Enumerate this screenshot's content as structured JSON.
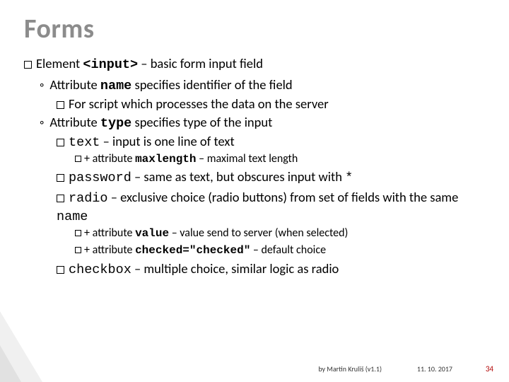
{
  "colors": {
    "title": "#8c8c8c",
    "text": "#000000",
    "background": "#ffffff",
    "pagenum": "#b10000",
    "corner_shadow": "rgba(0,0,0,0.06)"
  },
  "typography": {
    "title_fontsize_pt": 28,
    "body_fontsize_pt": 14,
    "sub_fontsize_pt": 12,
    "font_family": "Calibri",
    "mono_family": "Courier New"
  },
  "title": "Forms",
  "l1": {
    "prefix": "Element ",
    "code": "<input>",
    "suffix": " – basic form input field"
  },
  "attr_name": {
    "bullet": "◦",
    "prefix": "Attribute ",
    "code": "name",
    "suffix": " specifies identifier of the field",
    "sub": "For script which processes the data on the server"
  },
  "attr_type": {
    "bullet": "◦",
    "prefix": "Attribute ",
    "code": "type",
    "suffix": " specifies type of the input"
  },
  "types": {
    "text": {
      "code": "text",
      "suffix": " – input is one line of text",
      "sub": {
        "prefix": "+ attribute ",
        "code": "maxlength",
        "suffix": " – maximal text length"
      }
    },
    "password": {
      "code": "password",
      "mid": " – same as text, but obscures input with ",
      "star": "*"
    },
    "radio": {
      "code": "radio",
      "mid": " – exclusive choice (radio buttons) from set of fields with the same ",
      "name": "name",
      "sub1": {
        "prefix": "+ attribute ",
        "code": "value",
        "suffix": " – value send to server (when selected)"
      },
      "sub2": {
        "prefix": "+ attribute ",
        "code": "checked=\"checked\"",
        "suffix": " – default choice"
      }
    },
    "checkbox": {
      "code": "checkbox",
      "suffix": " – multiple choice, similar logic as radio"
    }
  },
  "footer": {
    "author": "by Martin Kruliš (v1.1)",
    "date": "11. 10. 2017",
    "page": "34"
  }
}
